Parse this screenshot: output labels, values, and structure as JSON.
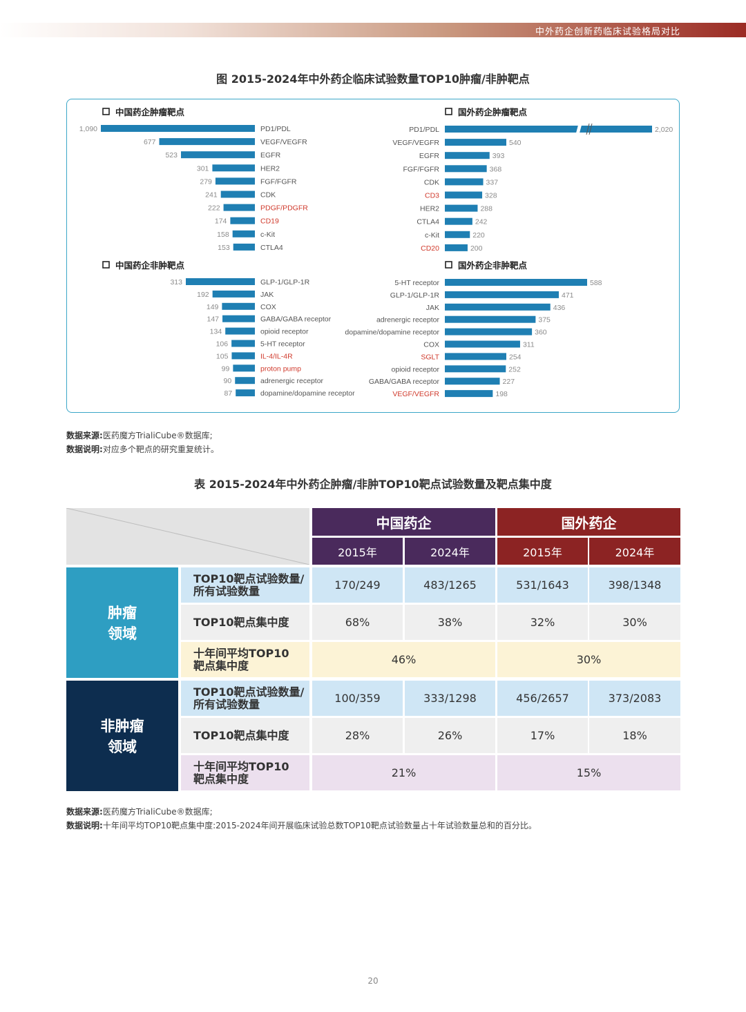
{
  "header": {
    "running_title": "中外药企创新药临床试验格局对比"
  },
  "figure": {
    "title": "图 2015-2024年中外药企临床试验数量TOP10肿瘤/非肿靶点",
    "chart_data": [
      {
        "type": "bar",
        "title": "中国药企肿瘤靶点",
        "categories": [
          "PD1/PDL",
          "VEGF/VEGFR",
          "EGFR",
          "HER2",
          "FGF/FGFR",
          "CDK",
          "PDGF/PDGFR",
          "CD19",
          "c-Kit",
          "CTLA4"
        ],
        "values": [
          1090,
          677,
          523,
          301,
          279,
          241,
          222,
          174,
          158,
          153
        ],
        "value_labels": [
          "1,090",
          "677",
          "523",
          "301",
          "279",
          "241",
          "222",
          "174",
          "158",
          "153"
        ],
        "highlight": [
          "PDGF/PDGFR",
          "CD19"
        ]
      },
      {
        "type": "bar",
        "title": "国外药企肿瘤靶点",
        "categories": [
          "PD1/PDL",
          "VEGF/VEGFR",
          "EGFR",
          "FGF/FGFR",
          "CDK",
          "CD3",
          "HER2",
          "CTLA4",
          "c-Kit",
          "CD20"
        ],
        "values": [
          2020,
          540,
          393,
          368,
          337,
          328,
          288,
          242,
          220,
          200
        ],
        "value_labels": [
          "2,020",
          "540",
          "393",
          "368",
          "337",
          "328",
          "288",
          "242",
          "220",
          "200"
        ],
        "highlight": [
          "CD3",
          "CD20"
        ],
        "axis_break": true
      },
      {
        "type": "bar",
        "title": "中国药企非肿靶点",
        "categories": [
          "GLP-1/GLP-1R",
          "JAK",
          "COX",
          "GABA/GABA receptor",
          "opioid receptor",
          "5-HT receptor",
          "IL-4/IL-4R",
          "proton pump",
          "adrenergic receptor",
          "dopamine/dopamine receptor"
        ],
        "values": [
          313,
          192,
          149,
          147,
          134,
          106,
          105,
          99,
          90,
          87
        ],
        "value_labels": [
          "313",
          "192",
          "149",
          "147",
          "134",
          "106",
          "105",
          "99",
          "90",
          "87"
        ],
        "highlight": [
          "IL-4/IL-4R",
          "proton pump"
        ]
      },
      {
        "type": "bar",
        "title": "国外药企非肿靶点",
        "categories": [
          "5-HT receptor",
          "GLP-1/GLP-1R",
          "JAK",
          "adrenergic receptor",
          "dopamine/dopamine receptor",
          "COX",
          "SGLT",
          "opioid receptor",
          "GABA/GABA receptor",
          "VEGF/VEGFR"
        ],
        "values": [
          588,
          471,
          436,
          375,
          360,
          311,
          254,
          252,
          227,
          198
        ],
        "value_labels": [
          "588",
          "471",
          "436",
          "375",
          "360",
          "311",
          "254",
          "252",
          "227",
          "198"
        ],
        "highlight": [
          "SGLT",
          "VEGF/VEGFR"
        ]
      }
    ],
    "colors": {
      "bar": "#1f7fb3",
      "highlight_text": "#d03a2c",
      "text": "#555555",
      "value_text": "#8a8a8a"
    },
    "source": {
      "label": "数据来源:",
      "text": "医药魔方TrialiCube®数据库;"
    },
    "note": {
      "label": "数据说明:",
      "text": "对应多个靶点的研究重复统计。"
    }
  },
  "table": {
    "title": "表 2015-2024年中外药企肿瘤/非肿TOP10靶点试验数量及靶点集中度",
    "groups": [
      "中国药企",
      "国外药企"
    ],
    "years": [
      "2015年",
      "2024年",
      "2015年",
      "2024年"
    ],
    "sections": [
      {
        "name": "肿瘤\n领域",
        "rows": [
          {
            "label": "TOP10靶点试验数量/\n所有试验数量",
            "values": [
              "170/249",
              "483/1265",
              "531/1643",
              "398/1348"
            ]
          },
          {
            "label": "TOP10靶点集中度",
            "values": [
              "68%",
              "38%",
              "32%",
              "30%"
            ]
          },
          {
            "label": "十年间平均TOP10\n靶点集中度",
            "merged": [
              "46%",
              "30%"
            ]
          }
        ]
      },
      {
        "name": "非肿瘤\n领域",
        "rows": [
          {
            "label": "TOP10靶点试验数量/\n所有试验数量",
            "values": [
              "100/359",
              "333/1298",
              "456/2657",
              "373/2083"
            ]
          },
          {
            "label": "TOP10靶点集中度",
            "values": [
              "28%",
              "26%",
              "17%",
              "18%"
            ]
          },
          {
            "label": "十年间平均TOP10\n靶点集中度",
            "merged": [
              "21%",
              "15%"
            ]
          }
        ]
      }
    ],
    "colors": {
      "china_header": "#4a2a5c",
      "foreign_header": "#8c2323",
      "oncology": "#2e9ec2",
      "non_oncology": "#0d2d4f",
      "row_blue": "#cfe6f5",
      "row_grey": "#efefef",
      "row_yellow": "#fcf3d6",
      "row_lilac": "#ece0ee"
    },
    "source": {
      "label": "数据来源:",
      "text": "医药魔方TrialiCube®数据库;"
    },
    "note": {
      "label": "数据说明:",
      "text": "十年间平均TOP10靶点集中度:2015-2024年间开展临床试验总数TOP10靶点试验数量占十年试验数量总和的百分比。"
    }
  },
  "page_number": "20"
}
